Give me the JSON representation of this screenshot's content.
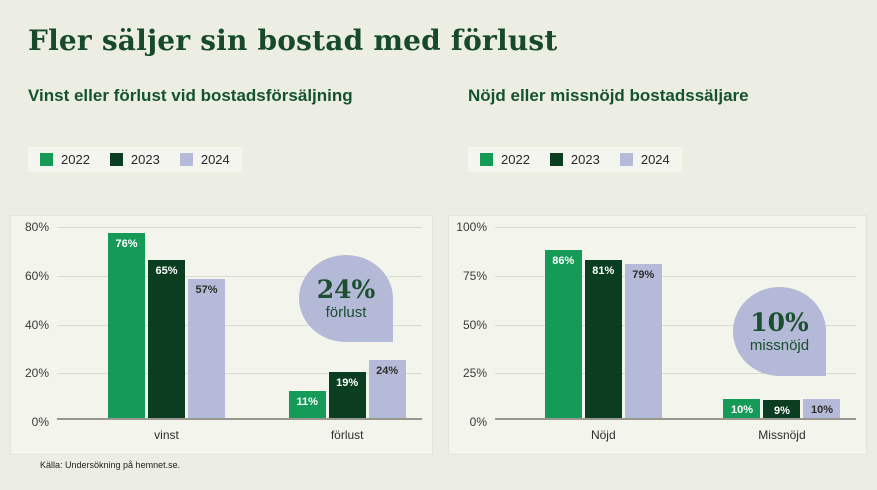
{
  "page": {
    "title": "Fler säljer sin bostad med förlust",
    "source": "Källa: Undersökning på hemnet.se.",
    "background_color": "#eceee3",
    "panel_color": "#f3f4ec",
    "title_color": "#174a2b",
    "bubble_color": "#b3b9d6"
  },
  "chart_data": [
    {
      "type": "bar",
      "title": "Vinst eller förlust vid bostadsförsäljning",
      "categories": [
        "vinst",
        "förlust"
      ],
      "series": [
        {
          "name": "2022",
          "color": "#169a58",
          "label_color": "#ffffff",
          "values": [
            76,
            11
          ]
        },
        {
          "name": "2023",
          "color": "#0b3d20",
          "label_color": "#ffffff",
          "values": [
            65,
            19
          ]
        },
        {
          "name": "2024",
          "color": "#b5bad8",
          "label_color": "#2e2e2a",
          "values": [
            57,
            24
          ]
        }
      ],
      "unit": "%",
      "ylim": [
        0,
        80
      ],
      "yticks": [
        0,
        20,
        40,
        60,
        80
      ],
      "grid": true,
      "legend_position": "top-left",
      "annotation": {
        "value": "24%",
        "label": "förlust"
      }
    },
    {
      "type": "bar",
      "title": "Nöjd eller missnöjd bostadssäljare",
      "categories": [
        "Nöjd",
        "Missnöjd"
      ],
      "series": [
        {
          "name": "2022",
          "color": "#169a58",
          "label_color": "#ffffff",
          "values": [
            86,
            10
          ]
        },
        {
          "name": "2023",
          "color": "#0b3d20",
          "label_color": "#ffffff",
          "values": [
            81,
            9
          ]
        },
        {
          "name": "2024",
          "color": "#b5bad8",
          "label_color": "#2e2e2a",
          "values": [
            79,
            10
          ]
        }
      ],
      "unit": "%",
      "ylim": [
        0,
        100
      ],
      "yticks": [
        0,
        25,
        50,
        75,
        100
      ],
      "grid": true,
      "legend_position": "top-left",
      "annotation": {
        "value": "10%",
        "label": "missnöjd"
      }
    }
  ]
}
